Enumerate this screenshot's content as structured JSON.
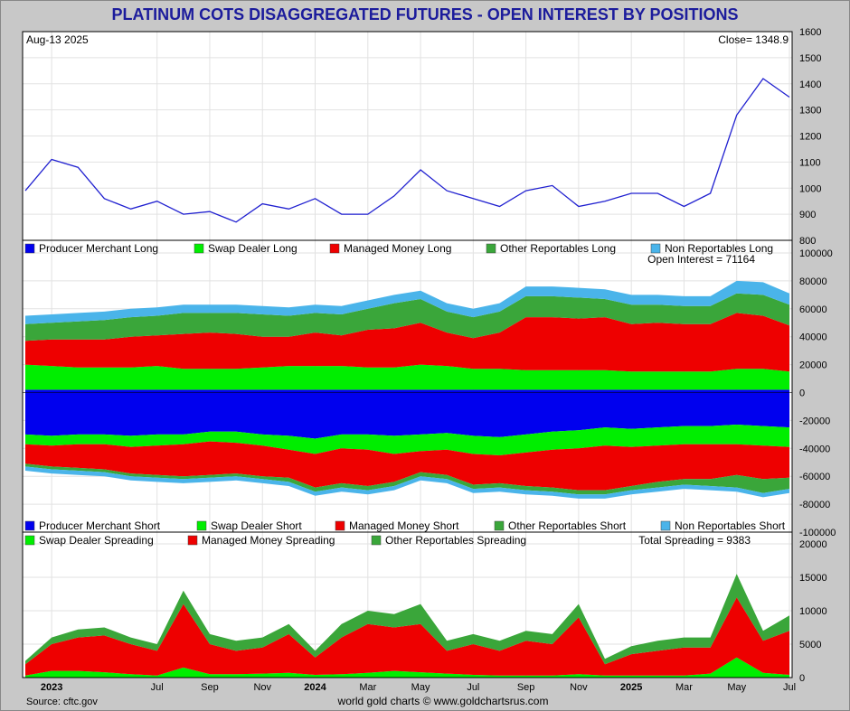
{
  "title": "PLATINUM COTS DISAGGREGATED FUTURES - OPEN INTEREST BY POSITIONS",
  "header": {
    "date": "Aug-13  2025",
    "close": "Close= 1348.9"
  },
  "open_interest": "Open Interest = 71164",
  "total_spreading": "Total Spreading = 9383",
  "source": "Source: cftc.gov",
  "credit": "world gold charts © www.goldchartsrus.com",
  "colors": {
    "blue": "#0000ee",
    "green": "#00ee00",
    "red": "#ee0000",
    "dgreen": "#3aa63a",
    "lblue": "#4ab4ea",
    "price": "#2020d0"
  },
  "legend_long": [
    "Producer Merchant Long",
    "Swap Dealer Long",
    "Managed Money Long",
    "Other Reportables Long",
    "Non Reportables Long"
  ],
  "legend_short": [
    "Producer Merchant Short",
    "Swap Dealer Short",
    "Managed Money Short",
    "Other Reportables Short",
    "Non Reportables Short"
  ],
  "legend_spread": [
    "Swap Dealer Spreading",
    "Managed Money Spreading",
    "Other Reportables Spreading"
  ],
  "chart_data": [
    {
      "type": "line",
      "x": [
        "2023-03",
        "2023-04",
        "2023-05",
        "2023-06",
        "2023-07",
        "2023-08",
        "2023-09",
        "2023-10",
        "2023-11",
        "2023-12",
        "2024-01",
        "2024-02",
        "2024-03",
        "2024-04",
        "2024-05",
        "2024-06",
        "2024-07",
        "2024-08",
        "2024-09",
        "2024-10",
        "2024-11",
        "2024-12",
        "2025-01",
        "2025-02",
        "2025-03",
        "2025-04",
        "2025-05",
        "2025-06",
        "2025-07",
        "2025-08"
      ],
      "series": [
        {
          "name": "Close",
          "values": [
            990,
            1110,
            1080,
            960,
            920,
            950,
            900,
            910,
            870,
            940,
            920,
            960,
            900,
            900,
            970,
            1070,
            990,
            960,
            930,
            990,
            1010,
            930,
            950,
            980,
            980,
            930,
            980,
            1280,
            1420,
            1349
          ]
        }
      ],
      "ylim": [
        800,
        1600
      ],
      "yticks": [
        800,
        900,
        1000,
        1100,
        1200,
        1300,
        1400,
        1500,
        1600
      ]
    },
    {
      "type": "area",
      "x": [
        "2023-03",
        "2023-04",
        "2023-05",
        "2023-06",
        "2023-07",
        "2023-08",
        "2023-09",
        "2023-10",
        "2023-11",
        "2023-12",
        "2024-01",
        "2024-02",
        "2024-03",
        "2024-04",
        "2024-05",
        "2024-06",
        "2024-07",
        "2024-08",
        "2024-09",
        "2024-10",
        "2024-11",
        "2024-12",
        "2025-01",
        "2025-02",
        "2025-03",
        "2025-04",
        "2025-05",
        "2025-06",
        "2025-07",
        "2025-08"
      ],
      "series": [
        {
          "name": "Producer Merchant Long",
          "values": [
            2000,
            2000,
            2000,
            2000,
            2000,
            2000,
            2000,
            2000,
            2000,
            2000,
            2000,
            2000,
            2000,
            2000,
            2000,
            2000,
            2000,
            2000,
            2000,
            2000,
            2000,
            2000,
            2000,
            2000,
            2000,
            2000,
            2000,
            2000,
            2000,
            2000
          ]
        },
        {
          "name": "Swap Dealer Long",
          "values": [
            18000,
            17000,
            16000,
            16000,
            16000,
            17000,
            15000,
            15000,
            15000,
            16000,
            17000,
            17000,
            17000,
            16000,
            16000,
            18000,
            17000,
            15000,
            15000,
            14000,
            14000,
            14000,
            14000,
            13000,
            13000,
            13000,
            13000,
            15000,
            15000,
            13000
          ]
        },
        {
          "name": "Managed Money Long",
          "values": [
            17000,
            19000,
            20000,
            20000,
            22000,
            22000,
            25000,
            26000,
            25000,
            22000,
            21000,
            24000,
            22000,
            27000,
            28000,
            30000,
            24000,
            22000,
            26000,
            38000,
            38000,
            37000,
            38000,
            34000,
            35000,
            34000,
            34000,
            40000,
            38000,
            33000
          ]
        },
        {
          "name": "Other Reportables Long",
          "values": [
            12000,
            12000,
            13000,
            14000,
            14000,
            14000,
            15000,
            14000,
            15000,
            16000,
            15000,
            14000,
            15000,
            15000,
            18000,
            17000,
            15000,
            15000,
            15000,
            15000,
            15000,
            15000,
            13000,
            14000,
            13000,
            13000,
            13000,
            14000,
            15000,
            15000
          ]
        },
        {
          "name": "Non Reportables Long",
          "values": [
            6000,
            6000,
            6000,
            6000,
            6000,
            6000,
            6000,
            6000,
            6000,
            6000,
            6000,
            6000,
            6000,
            6000,
            6000,
            6000,
            6000,
            6000,
            6000,
            7000,
            7000,
            7000,
            7000,
            7000,
            7000,
            7000,
            7000,
            9000,
            9000,
            8000
          ]
        },
        {
          "name": "Producer Merchant Short",
          "values": [
            -30000,
            -31000,
            -30000,
            -30000,
            -31000,
            -30000,
            -30000,
            -28000,
            -28000,
            -30000,
            -31000,
            -33000,
            -30000,
            -30000,
            -31000,
            -30000,
            -29000,
            -31000,
            -32000,
            -30000,
            -28000,
            -27000,
            -25000,
            -26000,
            -25000,
            -24000,
            -24000,
            -23000,
            -24000,
            -25000
          ]
        },
        {
          "name": "Swap Dealer Short",
          "values": [
            -7000,
            -7000,
            -7000,
            -7000,
            -8000,
            -8000,
            -7000,
            -7000,
            -8000,
            -8000,
            -10000,
            -11000,
            -10000,
            -11000,
            -13000,
            -12000,
            -12000,
            -13000,
            -13000,
            -13000,
            -13000,
            -13000,
            -13000,
            -13000,
            -13000,
            -13000,
            -13000,
            -14000,
            -14000,
            -14000
          ]
        },
        {
          "name": "Managed Money Short",
          "values": [
            -14000,
            -15000,
            -17000,
            -18000,
            -19000,
            -21000,
            -23000,
            -24000,
            -22000,
            -22000,
            -20000,
            -24000,
            -25000,
            -26000,
            -20000,
            -15000,
            -18000,
            -22000,
            -20000,
            -24000,
            -27000,
            -30000,
            -32000,
            -28000,
            -26000,
            -25000,
            -25000,
            -22000,
            -24000,
            -22000
          ]
        },
        {
          "name": "Other Reportables Short",
          "values": [
            -2000,
            -2000,
            -2000,
            -2000,
            -2000,
            -2000,
            -2000,
            -2000,
            -2000,
            -2000,
            -3000,
            -3000,
            -3000,
            -3000,
            -3000,
            -3000,
            -3000,
            -3000,
            -3000,
            -3000,
            -3000,
            -3000,
            -3000,
            -3000,
            -4000,
            -4000,
            -5000,
            -9000,
            -10000,
            -8000
          ]
        },
        {
          "name": "Non Reportables Short",
          "values": [
            -3000,
            -3000,
            -3000,
            -3000,
            -3000,
            -3000,
            -3000,
            -3000,
            -3000,
            -3000,
            -3000,
            -3000,
            -3000,
            -3000,
            -3000,
            -3000,
            -3000,
            -3000,
            -3000,
            -3000,
            -3000,
            -3000,
            -3000,
            -3000,
            -3000,
            -3000,
            -3000,
            -3000,
            -3000,
            -3000
          ]
        }
      ],
      "ylim": [
        -100000,
        100000
      ],
      "yticks": [
        -100000,
        -80000,
        -60000,
        -40000,
        -20000,
        0,
        20000,
        40000,
        60000,
        80000,
        100000
      ]
    },
    {
      "type": "area",
      "x": [
        "2023-03",
        "2023-04",
        "2023-05",
        "2023-06",
        "2023-07",
        "2023-08",
        "2023-09",
        "2023-10",
        "2023-11",
        "2023-12",
        "2024-01",
        "2024-02",
        "2024-03",
        "2024-04",
        "2024-05",
        "2024-06",
        "2024-07",
        "2024-08",
        "2024-09",
        "2024-10",
        "2024-11",
        "2024-12",
        "2025-01",
        "2025-02",
        "2025-03",
        "2025-04",
        "2025-05",
        "2025-06",
        "2025-07",
        "2025-08"
      ],
      "series": [
        {
          "name": "Swap Dealer Spreading",
          "values": [
            300,
            1000,
            1000,
            800,
            500,
            300,
            1500,
            500,
            500,
            600,
            700,
            400,
            500,
            700,
            1000,
            800,
            600,
            400,
            300,
            300,
            300,
            500,
            300,
            300,
            300,
            300,
            600,
            3000,
            700,
            400
          ]
        },
        {
          "name": "Managed Money Spreading",
          "values": [
            1700,
            4000,
            5000,
            5500,
            4500,
            3700,
            9500,
            4500,
            3500,
            3900,
            5800,
            2600,
            5500,
            7300,
            6500,
            7200,
            3400,
            4600,
            3700,
            5200,
            4700,
            8500,
            1700,
            3200,
            3700,
            4200,
            3900,
            9000,
            4800,
            6600
          ]
        },
        {
          "name": "Other Reportables Spreading",
          "values": [
            500,
            1000,
            1200,
            1200,
            1000,
            1000,
            2000,
            1500,
            1500,
            1500,
            1500,
            1000,
            2000,
            2000,
            2000,
            3000,
            1500,
            1500,
            1500,
            1500,
            1500,
            2000,
            800,
            1200,
            1500,
            1500,
            1500,
            3500,
            1500,
            2300
          ]
        }
      ],
      "ylim": [
        0,
        20000
      ],
      "yticks": [
        0,
        5000,
        10000,
        15000,
        20000
      ]
    }
  ],
  "x_labels": [
    "2023",
    "Jul",
    "Sep",
    "Nov",
    "2024",
    "Mar",
    "May",
    "Jul",
    "Sep",
    "Nov",
    "2025",
    "Mar",
    "May",
    "Jul"
  ]
}
